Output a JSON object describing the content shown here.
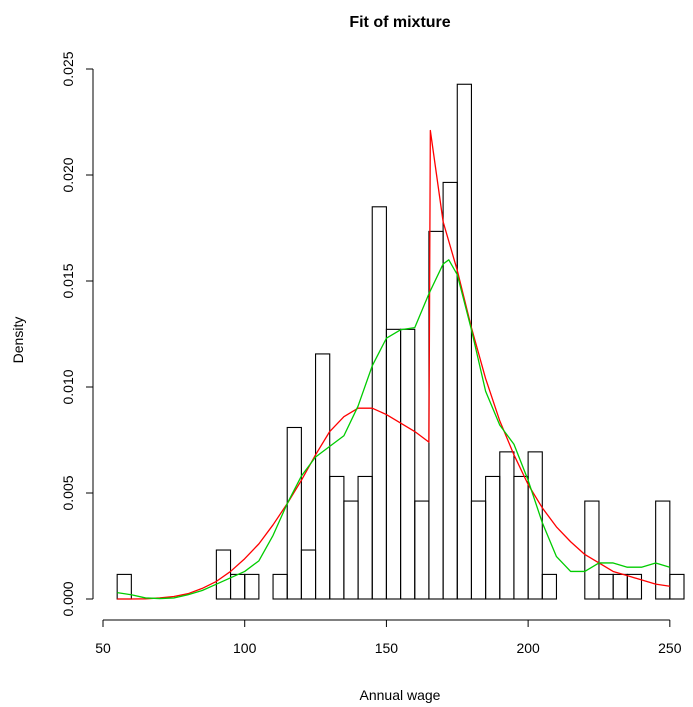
{
  "chart_data": {
    "type": "bar",
    "title": "Fit of mixture",
    "xlabel": "Annual wage",
    "ylabel": "Density",
    "xlim": [
      50,
      255
    ],
    "ylim": [
      0,
      0.025
    ],
    "x_ticks": [
      50,
      100,
      150,
      200,
      250
    ],
    "x_tick_labels": [
      "50",
      "100",
      "150",
      "200",
      "250"
    ],
    "y_ticks": [
      0.0,
      0.005,
      0.01,
      0.015,
      0.02,
      0.025
    ],
    "y_tick_labels": [
      "0.000",
      "0.005",
      "0.010",
      "0.015",
      "0.020",
      "0.025"
    ],
    "grid": false,
    "histogram": {
      "bin_width": 5,
      "bin_starts": [
        55,
        60,
        65,
        70,
        75,
        80,
        85,
        90,
        95,
        100,
        105,
        110,
        115,
        120,
        125,
        130,
        135,
        140,
        145,
        150,
        155,
        160,
        165,
        170,
        175,
        180,
        185,
        190,
        195,
        200,
        205,
        210,
        215,
        220,
        225,
        230,
        235,
        240,
        245,
        250
      ],
      "densities": [
        0.00116,
        0,
        0,
        0,
        0,
        0,
        0,
        0.00231,
        0.00116,
        0.00116,
        0,
        0.00116,
        0.00809,
        0.00231,
        0.01156,
        0.00578,
        0.00462,
        0.00578,
        0.0185,
        0.01272,
        0.01272,
        0.00462,
        0.01734,
        0.01965,
        0.02428,
        0.00462,
        0.00578,
        0.00694,
        0.00578,
        0.00694,
        0.00116,
        0,
        0,
        0.00462,
        0.00116,
        0.00116,
        0.00116,
        0,
        0.00462,
        0.00116
      ]
    },
    "series": [
      {
        "color": "#ff0000",
        "x": [
          55,
          60,
          65,
          70,
          75,
          80,
          85,
          90,
          95,
          100,
          105,
          110,
          115,
          120,
          125,
          130,
          135,
          140,
          145,
          150,
          155,
          160,
          165,
          165.5,
          170,
          175,
          180,
          185,
          190,
          195,
          200,
          205,
          210,
          215,
          220,
          225,
          230,
          235,
          240,
          245,
          250
        ],
        "y": [
          0,
          0,
          1e-05,
          5e-05,
          0.00012,
          0.00025,
          0.0005,
          0.00083,
          0.0013,
          0.0019,
          0.0026,
          0.0035,
          0.0045,
          0.0056,
          0.0068,
          0.0079,
          0.0086,
          0.009,
          0.009,
          0.0087,
          0.0083,
          0.0079,
          0.0074,
          0.0221,
          0.0178,
          0.0155,
          0.0128,
          0.0104,
          0.0084,
          0.0068,
          0.0054,
          0.0043,
          0.0034,
          0.0027,
          0.0021,
          0.0017,
          0.0013,
          0.0011,
          0.0009,
          0.0007,
          0.0006
        ]
      },
      {
        "color": "#00cc00",
        "x": [
          55,
          60,
          65,
          70,
          75,
          80,
          85,
          90,
          95,
          100,
          105,
          110,
          115,
          120,
          125,
          130,
          135,
          140,
          145,
          150,
          155,
          160,
          165,
          170,
          172,
          175,
          180,
          185,
          190,
          195,
          200,
          205,
          210,
          215,
          220,
          225,
          230,
          235,
          240,
          245,
          250
        ],
        "y": [
          0.0003,
          0.0002,
          5e-05,
          2e-05,
          5e-05,
          0.0002,
          0.0004,
          0.0007,
          0.001,
          0.0013,
          0.0018,
          0.003,
          0.0045,
          0.0058,
          0.0067,
          0.0072,
          0.0077,
          0.0091,
          0.011,
          0.0123,
          0.0127,
          0.0128,
          0.0144,
          0.0158,
          0.016,
          0.0153,
          0.0127,
          0.0098,
          0.0082,
          0.0073,
          0.0056,
          0.0036,
          0.002,
          0.0013,
          0.0013,
          0.0017,
          0.0017,
          0.0015,
          0.0015,
          0.0017,
          0.0015
        ]
      }
    ]
  }
}
